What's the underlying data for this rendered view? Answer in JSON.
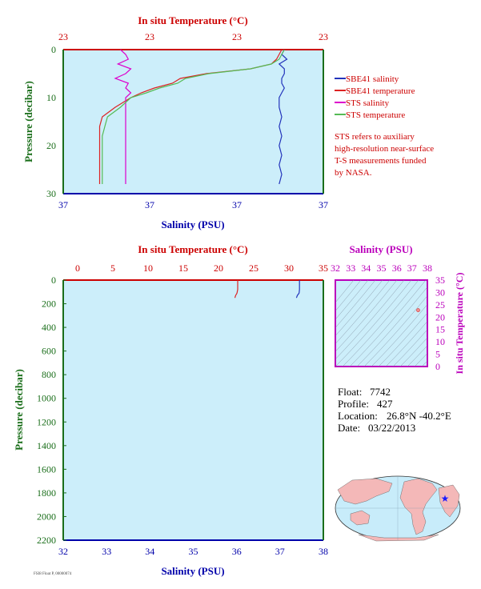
{
  "colors": {
    "background": "#ffffff",
    "plot_bg": "#cceefa",
    "temperature_axis": "#cc0000",
    "salinity_axis": "#0000aa",
    "pressure_axis": "#1a6e1a",
    "sbe_salinity": "#2233bb",
    "sbe_temperature": "#dd2222",
    "sts_salinity": "#dd00cc",
    "sts_temperature": "#55bb55",
    "sts_temp_light": "#f09090",
    "ts_axis": "#bb00bb",
    "map_land": "#f4b8b8",
    "map_ocean": "#c8ecfa",
    "float_marker": "#1a1aff"
  },
  "top_panel": {
    "temp_axis_title": "In situ Temperature (°C)",
    "temp_ticks": [
      "23",
      "23",
      "23",
      "23"
    ],
    "sal_axis_title": "Salinity (PSU)",
    "sal_ticks": [
      "37",
      "37",
      "37",
      "37"
    ],
    "pressure_axis_title": "Pressure (decibar)",
    "pressure_ticks": [
      "0",
      "10",
      "20",
      "30"
    ],
    "legend": [
      {
        "label": "SBE41 salinity",
        "color": "#2233bb"
      },
      {
        "label": "SBE41 temperature",
        "color": "#dd2222"
      },
      {
        "label": "STS salinity",
        "color": "#dd00cc"
      },
      {
        "label": "STS temperature",
        "color": "#55bb55"
      }
    ],
    "note_lines": [
      "STS refers to auxiliary",
      "high-resolution near-surface",
      "T-S measurements funded",
      "by NASA."
    ]
  },
  "bottom_panel": {
    "temp_axis_title": "In situ Temperature (°C)",
    "temp_ticks": [
      "0",
      "5",
      "10",
      "15",
      "20",
      "25",
      "30",
      "35"
    ],
    "sal_axis_title": "Salinity (PSU)",
    "sal_ticks": [
      "32",
      "33",
      "34",
      "35",
      "36",
      "37",
      "38"
    ],
    "pressure_axis_title": "Pressure (decibar)",
    "pressure_ticks": [
      "0",
      "200",
      "400",
      "600",
      "800",
      "1000",
      "1200",
      "1400",
      "1600",
      "1800",
      "2000",
      "2200"
    ]
  },
  "ts_panel": {
    "sal_axis_title": "Salinity (PSU)",
    "sal_ticks": [
      "32",
      "33",
      "34",
      "35",
      "36",
      "37",
      "38"
    ],
    "temp_axis_title": "In situ Temperature (°C)",
    "temp_ticks": [
      "0",
      "5",
      "10",
      "15",
      "20",
      "25",
      "30",
      "35"
    ]
  },
  "info": {
    "float_label": "Float:",
    "float_value": "7742",
    "profile_label": "Profile:",
    "profile_value": "427",
    "location_label": "Location:",
    "location_value": "26.8°N  -40.2°E",
    "date_label": "Date:",
    "date_value": "03/22/2013"
  },
  "footer_note": "FSI8 Float P, 00000074",
  "chart_data": [
    {
      "type": "line",
      "title": "",
      "xlabel_top": "In situ Temperature (°C)",
      "xlabel_bottom": "Salinity (PSU)",
      "ylabel": "Pressure (decibar)",
      "ylim": [
        30,
        0
      ],
      "series": [
        {
          "name": "SBE41 salinity",
          "pressure": [
            0,
            1,
            2,
            3,
            4,
            5,
            6,
            7,
            8,
            9,
            10,
            12,
            14,
            16,
            18,
            20,
            22,
            24,
            26,
            28
          ],
          "position": [
            0.85,
            0.84,
            0.86,
            0.83,
            0.85,
            0.85,
            0.84,
            0.84,
            0.85,
            0.84,
            0.83,
            0.83,
            0.84,
            0.83,
            0.84,
            0.83,
            0.84,
            0.83,
            0.84,
            0.83
          ]
        },
        {
          "name": "SBE41 temperature",
          "pressure": [
            0,
            1,
            2,
            3,
            4,
            5,
            6,
            7,
            8,
            9,
            10,
            12,
            14,
            16,
            18,
            20,
            22,
            24,
            26,
            28
          ],
          "position": [
            0.84,
            0.83,
            0.82,
            0.8,
            0.72,
            0.55,
            0.45,
            0.42,
            0.35,
            0.3,
            0.26,
            0.2,
            0.15,
            0.14,
            0.14,
            0.14,
            0.14,
            0.14,
            0.14,
            0.14
          ]
        },
        {
          "name": "STS salinity",
          "pressure": [
            0,
            1,
            2,
            3,
            4,
            5,
            6,
            7,
            8,
            9,
            10,
            12,
            14,
            16,
            18,
            20,
            22,
            24,
            26,
            28
          ],
          "position": [
            0.22,
            0.24,
            0.25,
            0.21,
            0.26,
            0.24,
            0.2,
            0.25,
            0.24,
            0.26,
            0.24,
            0.24,
            0.24,
            0.24,
            0.24,
            0.24,
            0.24,
            0.24,
            0.24,
            0.24
          ]
        },
        {
          "name": "STS temperature",
          "pressure": [
            0,
            1,
            2,
            3,
            4,
            5,
            6,
            7,
            8,
            9,
            10,
            12,
            14,
            16,
            18,
            20,
            22,
            24,
            26,
            28
          ],
          "position": [
            0.85,
            0.84,
            0.83,
            0.8,
            0.72,
            0.56,
            0.47,
            0.44,
            0.37,
            0.32,
            0.26,
            0.22,
            0.17,
            0.16,
            0.15,
            0.15,
            0.15,
            0.15,
            0.15,
            0.15
          ]
        }
      ]
    },
    {
      "type": "line",
      "title": "",
      "xlabel_top": "In situ Temperature (°C)",
      "xlabel_bottom": "Salinity (PSU)",
      "ylabel": "Pressure (decibar)",
      "temp_range": [
        0,
        35
      ],
      "sal_range": [
        32,
        38
      ],
      "ylim": [
        2200,
        0
      ],
      "series": [
        {
          "name": "SBE41 temperature",
          "temperature": [
            22.8,
            22.8,
            22.8,
            22.7,
            22.5,
            22.4
          ],
          "pressure": [
            0,
            40,
            80,
            110,
            130,
            150
          ]
        },
        {
          "name": "SBE41 salinity",
          "salinity": [
            37.45,
            37.45,
            37.45,
            37.44,
            37.4,
            37.38
          ],
          "pressure": [
            0,
            40,
            80,
            110,
            130,
            150
          ]
        }
      ]
    },
    {
      "type": "scatter",
      "title": "",
      "xlabel": "Salinity (PSU)",
      "ylabel": "In situ Temperature (°C)",
      "xlim": [
        32,
        38
      ],
      "ylim": [
        0,
        35
      ],
      "points": [
        {
          "salinity": 37.4,
          "temperature": 22.8
        }
      ]
    }
  ]
}
